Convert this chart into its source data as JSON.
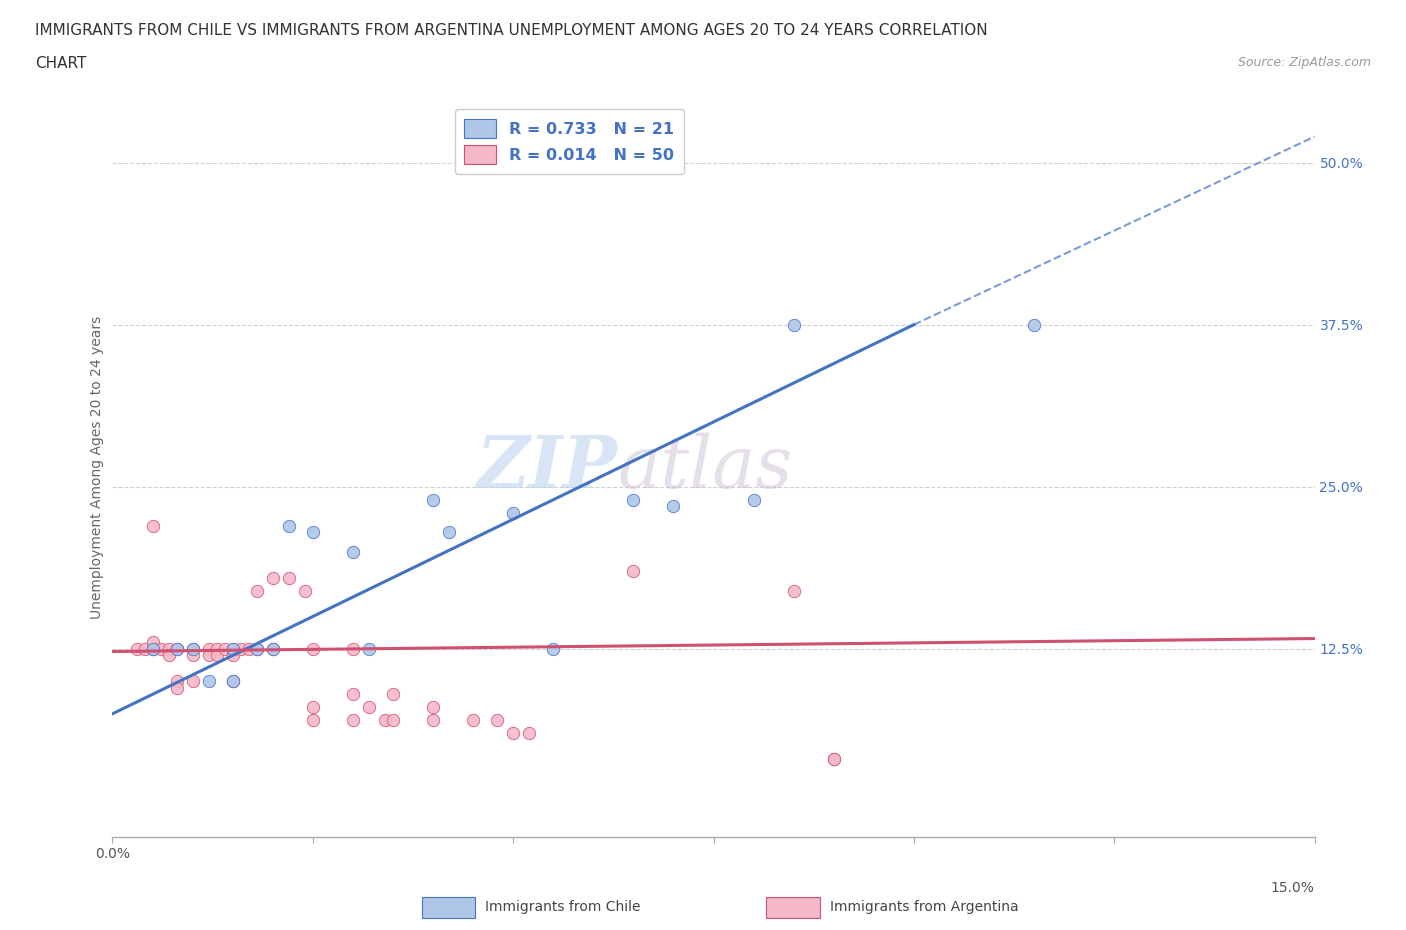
{
  "title_line1": "IMMIGRANTS FROM CHILE VS IMMIGRANTS FROM ARGENTINA UNEMPLOYMENT AMONG AGES 20 TO 24 YEARS CORRELATION",
  "title_line2": "CHART",
  "source_text": "Source: ZipAtlas.com",
  "ylabel": "Unemployment Among Ages 20 to 24 years",
  "xlim": [
    0.0,
    0.15
  ],
  "ylim": [
    -0.02,
    0.55
  ],
  "xticks": [
    0.0,
    0.025,
    0.05,
    0.075,
    0.1,
    0.125,
    0.15
  ],
  "ytick_positions": [
    0.125,
    0.25,
    0.375,
    0.5
  ],
  "ytick_labels": [
    "12.5%",
    "25.0%",
    "37.5%",
    "50.0%"
  ],
  "watermark_zip": "ZIP",
  "watermark_atlas": "atlas",
  "legend_r_chile": "0.733",
  "legend_n_chile": "21",
  "legend_r_argentina": "0.014",
  "legend_n_argentina": "50",
  "chile_color": "#aec6e8",
  "argentina_color": "#f5b8c8",
  "chile_line_color": "#4472c4",
  "argentina_line_color": "#d05070",
  "grid_color": "#d0d0d0",
  "chile_scatter": [
    [
      0.005,
      0.125
    ],
    [
      0.008,
      0.125
    ],
    [
      0.01,
      0.125
    ],
    [
      0.012,
      0.1
    ],
    [
      0.015,
      0.125
    ],
    [
      0.015,
      0.1
    ],
    [
      0.018,
      0.125
    ],
    [
      0.02,
      0.125
    ],
    [
      0.022,
      0.22
    ],
    [
      0.025,
      0.215
    ],
    [
      0.03,
      0.2
    ],
    [
      0.032,
      0.125
    ],
    [
      0.04,
      0.24
    ],
    [
      0.042,
      0.215
    ],
    [
      0.05,
      0.23
    ],
    [
      0.055,
      0.125
    ],
    [
      0.065,
      0.24
    ],
    [
      0.07,
      0.235
    ],
    [
      0.08,
      0.24
    ],
    [
      0.085,
      0.375
    ],
    [
      0.115,
      0.375
    ]
  ],
  "argentina_scatter": [
    [
      0.003,
      0.125
    ],
    [
      0.004,
      0.125
    ],
    [
      0.005,
      0.125
    ],
    [
      0.005,
      0.13
    ],
    [
      0.005,
      0.22
    ],
    [
      0.006,
      0.125
    ],
    [
      0.007,
      0.125
    ],
    [
      0.007,
      0.12
    ],
    [
      0.008,
      0.125
    ],
    [
      0.008,
      0.1
    ],
    [
      0.008,
      0.095
    ],
    [
      0.01,
      0.125
    ],
    [
      0.01,
      0.12
    ],
    [
      0.01,
      0.1
    ],
    [
      0.012,
      0.125
    ],
    [
      0.012,
      0.12
    ],
    [
      0.013,
      0.125
    ],
    [
      0.013,
      0.12
    ],
    [
      0.014,
      0.125
    ],
    [
      0.015,
      0.125
    ],
    [
      0.015,
      0.12
    ],
    [
      0.015,
      0.1
    ],
    [
      0.016,
      0.125
    ],
    [
      0.017,
      0.125
    ],
    [
      0.018,
      0.125
    ],
    [
      0.018,
      0.17
    ],
    [
      0.02,
      0.125
    ],
    [
      0.02,
      0.18
    ],
    [
      0.022,
      0.18
    ],
    [
      0.024,
      0.17
    ],
    [
      0.025,
      0.125
    ],
    [
      0.025,
      0.08
    ],
    [
      0.025,
      0.07
    ],
    [
      0.03,
      0.125
    ],
    [
      0.03,
      0.09
    ],
    [
      0.03,
      0.07
    ],
    [
      0.032,
      0.08
    ],
    [
      0.034,
      0.07
    ],
    [
      0.035,
      0.09
    ],
    [
      0.035,
      0.07
    ],
    [
      0.04,
      0.08
    ],
    [
      0.04,
      0.07
    ],
    [
      0.045,
      0.07
    ],
    [
      0.048,
      0.07
    ],
    [
      0.05,
      0.06
    ],
    [
      0.052,
      0.06
    ],
    [
      0.065,
      0.185
    ],
    [
      0.085,
      0.17
    ],
    [
      0.09,
      0.04
    ],
    [
      0.09,
      0.04
    ]
  ],
  "chile_trendline_solid": [
    [
      0.0,
      0.075
    ],
    [
      0.1,
      0.375
    ]
  ],
  "chile_trendline_dash": [
    [
      0.1,
      0.375
    ],
    [
      0.15,
      0.52
    ]
  ],
  "argentina_trendline": [
    [
      0.0,
      0.123
    ],
    [
      0.15,
      0.133
    ]
  ]
}
